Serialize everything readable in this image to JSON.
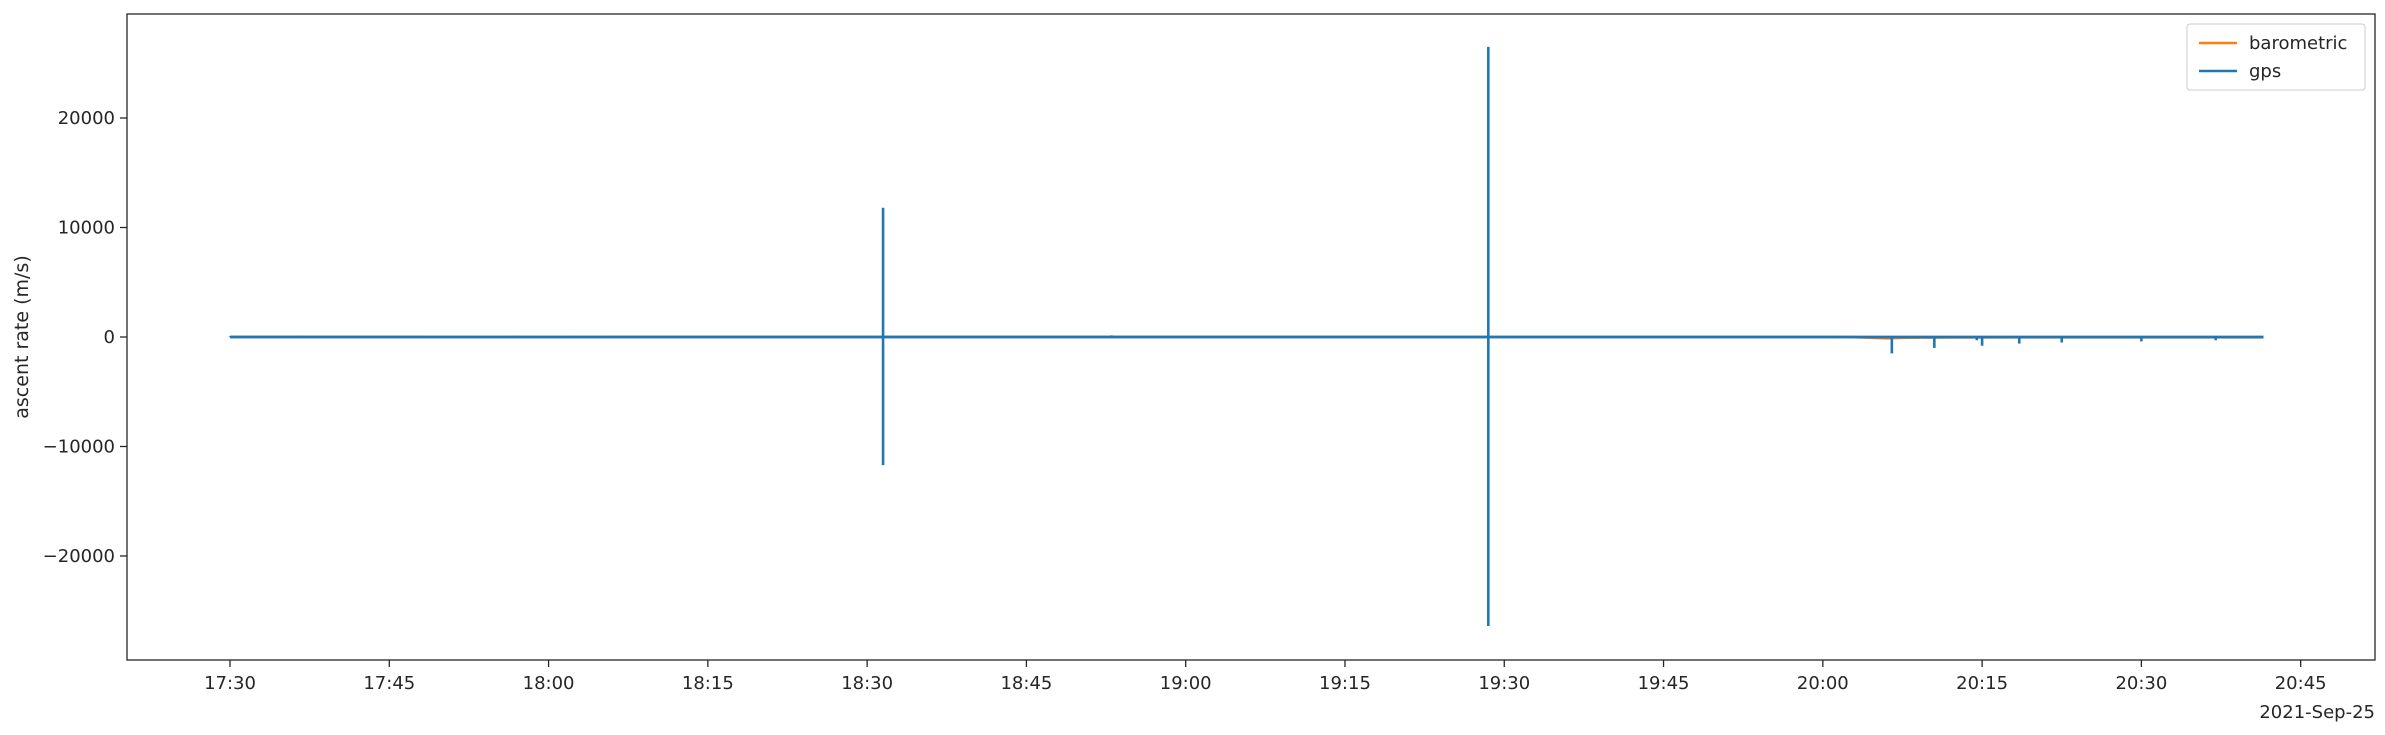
{
  "chart_data": {
    "type": "line",
    "title": "",
    "xlabel": "",
    "ylabel": "ascent rate (m/s)",
    "x_axis_offset_label": "2021-Sep-25",
    "x_tick_labels": [
      "17:30",
      "17:45",
      "18:00",
      "18:15",
      "18:30",
      "18:45",
      "19:00",
      "19:15",
      "19:30",
      "19:45",
      "20:00",
      "20:15",
      "20:30",
      "20:45"
    ],
    "x_ticks_minutes": [
      1050,
      1065,
      1080,
      1095,
      1110,
      1125,
      1140,
      1155,
      1170,
      1185,
      1200,
      1215,
      1230,
      1245
    ],
    "x_range_minutes": [
      1040.3,
      1252.0
    ],
    "y_ticks": [
      -20000,
      -10000,
      0,
      10000,
      20000
    ],
    "y_tick_labels": [
      "−20000",
      "−10000",
      "0",
      "10000",
      "20000"
    ],
    "ylim": [
      -29500,
      29500
    ],
    "grid": false,
    "legend_position": "top-right",
    "series": [
      {
        "name": "barometric",
        "color": "#ff7f0e",
        "x_minutes": [
          1050,
          1080,
          1110,
          1140,
          1170,
          1200,
          1203,
          1206,
          1208,
          1212,
          1230,
          1241.5
        ],
        "values": [
          5,
          4,
          5,
          5,
          4,
          4,
          -20,
          -120,
          -60,
          -40,
          -30,
          -25
        ]
      },
      {
        "name": "gps",
        "color": "#1f77b4",
        "baseline_x_range": [
          1050,
          1241.5
        ],
        "spikes": [
          {
            "x": 1050,
            "y": 60
          },
          {
            "x": 1056.5,
            "y": 120
          },
          {
            "x": 1063,
            "y": 60
          },
          {
            "x": 1069,
            "y": 60
          },
          {
            "x": 1072.5,
            "y": 60
          },
          {
            "x": 1078,
            "y": 60
          },
          {
            "x": 1085,
            "y": 60
          },
          {
            "x": 1093,
            "y": 60
          },
          {
            "x": 1100,
            "y": 60
          },
          {
            "x": 1111.5,
            "y": 11800
          },
          {
            "x": 1111.5,
            "y": -11700
          },
          {
            "x": 1120,
            "y": 60
          },
          {
            "x": 1125,
            "y": 60
          },
          {
            "x": 1133,
            "y": 150
          },
          {
            "x": 1140,
            "y": 60
          },
          {
            "x": 1150,
            "y": 60
          },
          {
            "x": 1159,
            "y": 60
          },
          {
            "x": 1168.5,
            "y": 26500
          },
          {
            "x": 1168.5,
            "y": -26400
          },
          {
            "x": 1180,
            "y": 60
          },
          {
            "x": 1186.5,
            "y": 60
          },
          {
            "x": 1206.5,
            "y": -1500
          },
          {
            "x": 1210.5,
            "y": -1000
          },
          {
            "x": 1214.5,
            "y": -300
          },
          {
            "x": 1215,
            "y": -800
          },
          {
            "x": 1218.5,
            "y": -600
          },
          {
            "x": 1222.5,
            "y": -500
          },
          {
            "x": 1230,
            "y": -400
          },
          {
            "x": 1237,
            "y": -300
          }
        ]
      }
    ]
  }
}
